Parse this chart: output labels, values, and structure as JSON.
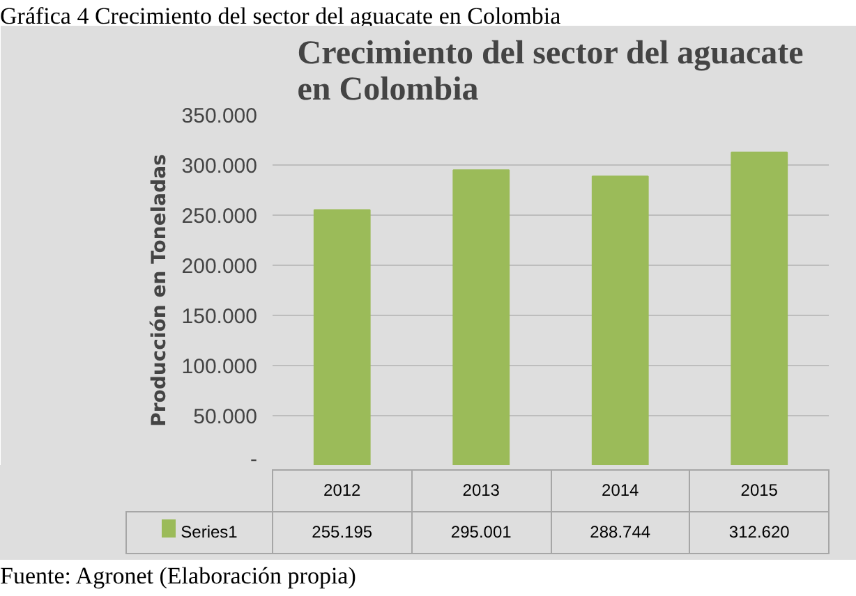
{
  "chart_data": {
    "type": "bar",
    "title": "Crecimiento del sector del aguacate en Colombia",
    "ylabel": "Producción en Toneladas",
    "categories": [
      "2012",
      "2013",
      "2014",
      "2015"
    ],
    "series": [
      {
        "name": "Series1",
        "color": "#9bbb59",
        "values": [
          255195,
          295001,
          288744,
          312620
        ],
        "value_labels": [
          "255.195",
          "295.001",
          "288.744",
          "312.620"
        ]
      }
    ],
    "ylim": [
      0,
      350000
    ],
    "yticks": [
      {
        "value": 0,
        "label": "-"
      },
      {
        "value": 50000,
        "label": "50.000"
      },
      {
        "value": 100000,
        "label": "100.000"
      },
      {
        "value": 150000,
        "label": "150.000"
      },
      {
        "value": 200000,
        "label": "200.000"
      },
      {
        "value": 250000,
        "label": "250.000"
      },
      {
        "value": 300000,
        "label": "300.000"
      },
      {
        "value": 350000,
        "label": "350.000"
      }
    ],
    "grid": "y",
    "legend": "bottom",
    "annotations": [
      "Gráfica 4 Crecimiento del sector del aguacate en Colombia",
      "Fuente: Agronet (Elaboración propia)"
    ]
  }
}
